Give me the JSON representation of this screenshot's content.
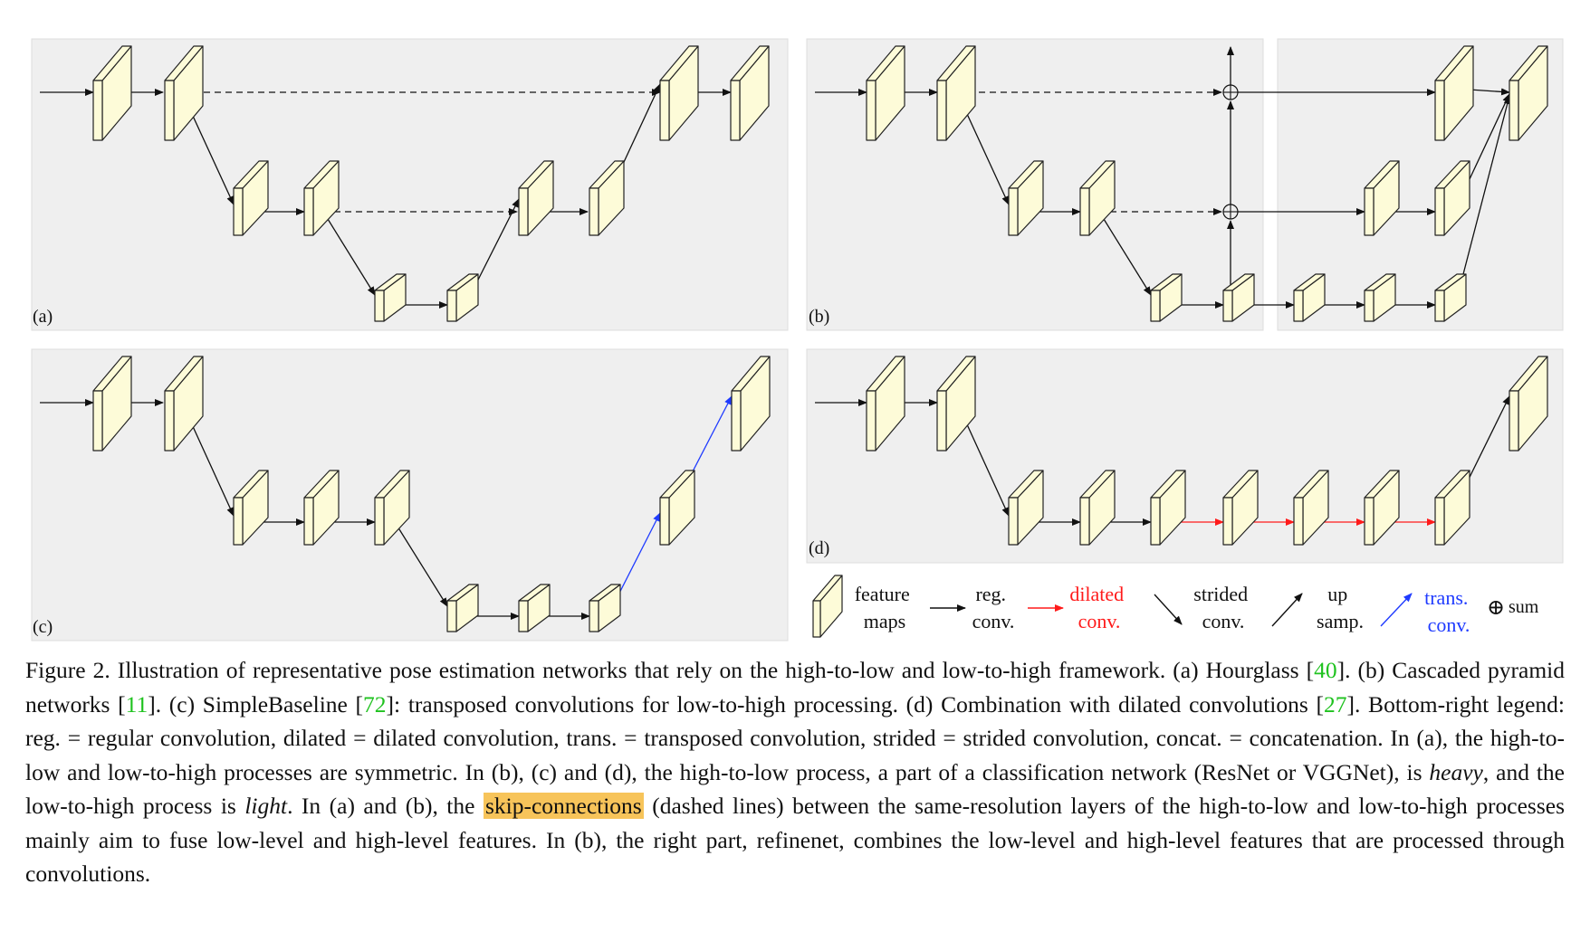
{
  "panels": {
    "a": "(a)",
    "b": "(b)",
    "c": "(c)",
    "d": "(d)"
  },
  "legend": {
    "feature_maps": [
      "feature",
      "maps"
    ],
    "reg_conv": [
      "reg.",
      "conv."
    ],
    "dilated_conv": [
      "dilated",
      "conv."
    ],
    "strided_conv": [
      "strided",
      "conv."
    ],
    "up_samp": [
      "up",
      "samp."
    ],
    "trans_conv": [
      "trans.",
      "conv."
    ],
    "sum_symbol": "⊕",
    "sum": "sum"
  },
  "colors": {
    "panel_bg": "#efefef",
    "box_fill": "#fdfbd8",
    "dilated": "#ff1a1a",
    "transposed": "#1f3bff",
    "reference": "#1fc21f",
    "highlight": "#f7c45a"
  },
  "caption": {
    "p1": "Figure 2. Illustration of representative pose estimation networks that rely on the high-to-low and low-to-high framework. (a) Hourglass [",
    "r1": "40",
    "p2": "]. (b) Cascaded pyramid networks [",
    "r2": "11",
    "p3": "]. (c) SimpleBaseline [",
    "r3": "72",
    "p4": "]: transposed convolutions for low-to-high processing. (d) Combination with dilated convolutions [",
    "r4": "27",
    "p5": "]. Bottom-right legend: reg. = regular convolution, dilated = dilated convolution, trans. = transposed convolution, strided = strided convolution, concat. = concatenation. In (a), the high-to-low and low-to-high processes are symmetric. In (b), (c) and (d), the high-to-low process, a part of a classification network (ResNet or VGGNet), is ",
    "e1": "heavy",
    "p6": ", and the low-to-high process is ",
    "e2": "light",
    "p7": ". In (a) and (b), the ",
    "hl": "skip-connections",
    "p8": " (dashed lines) between the same-resolution layers of the high-to-low and low-to-high processes mainly aim to fuse low-level and high-level features. In (b), the right part, refinenet, combines the low-level and high-level features that are processed through convolutions."
  }
}
